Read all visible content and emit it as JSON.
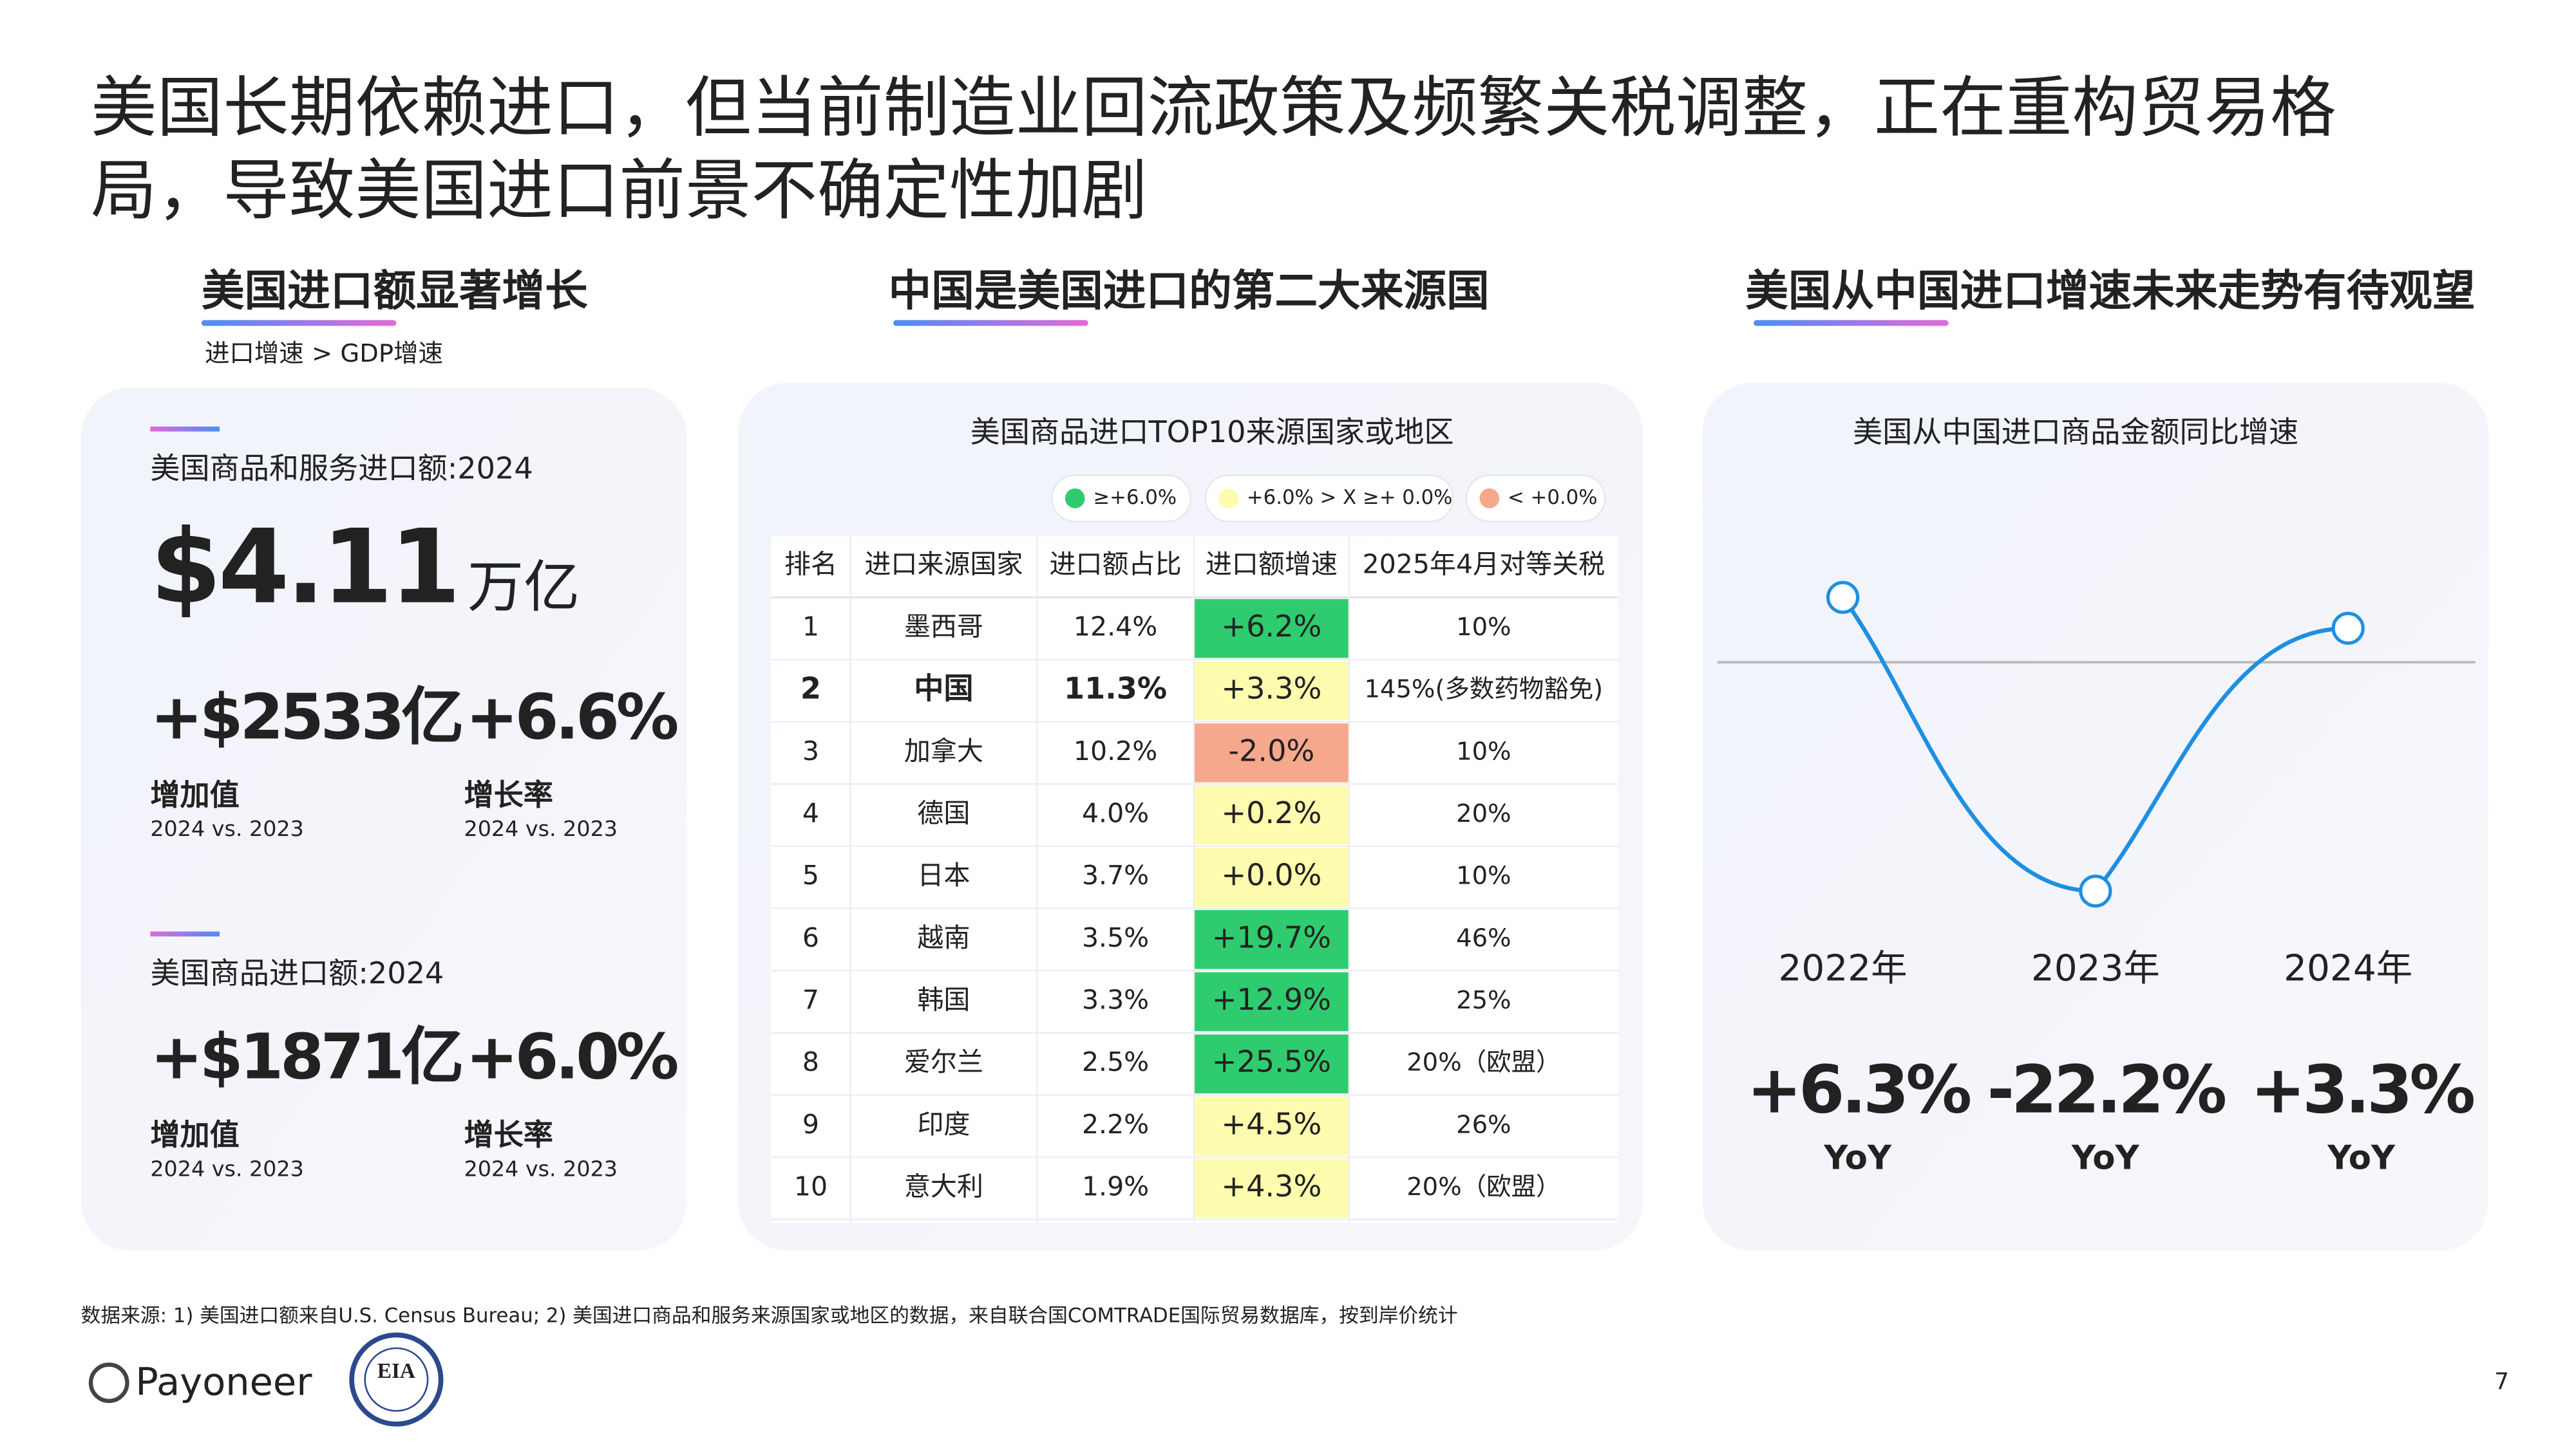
{
  "title_lines": [
    "美国长期依赖进口，但当前制造业回流政策及频繁关税调整，正在重构贸易格",
    "局，导致美国进口前景不确定性加剧"
  ],
  "sections": [
    {
      "heading": "美国进口额显著增长",
      "subheading": "进口增速 > GDP增速"
    },
    {
      "heading": "中国是美国进口的第二大来源国"
    },
    {
      "heading": "美国从中国进口增速未来走势有待观望"
    }
  ],
  "imports": {
    "blocks": [
      {
        "label": "美国商品和服务进口额:2024",
        "total": "$4.11",
        "total_unit": "万亿",
        "increase": "+$2533亿",
        "rate": "+6.6%",
        "increase_label": "增加值",
        "rate_label": "增长率",
        "period": "2024 vs. 2023"
      },
      {
        "label": "美国商品进口额:2024",
        "increase": "+$1871亿",
        "rate": "+6.0%",
        "increase_label": "增加值",
        "rate_label": "增长率",
        "period": "2024 vs. 2023"
      }
    ]
  },
  "table": {
    "title": "美国商品进口TOP10来源国家或地区",
    "legend": [
      {
        "label": "≥+6.0%",
        "min": 6,
        "color": "#2fcc6f",
        "text_color": "#0b3d1a"
      },
      {
        "label": "+6.0% > X ≥+ 0.0%",
        "min": 0,
        "color": "#fdfcae",
        "text_color": "#9a8a00"
      },
      {
        "label": "< +0.0%",
        "color": "#f6a88c",
        "text_color": "#e8411d"
      }
    ],
    "columns": [
      "排名",
      "进口来源国家",
      "进口额占比",
      "进口额增速",
      "2025年4月对等关税"
    ],
    "rows": [
      {
        "rank": "1",
        "country": "墨西哥",
        "share": "12.4%",
        "growth": 6.2,
        "growth_label": "+6.2%",
        "tariff": "10%"
      },
      {
        "rank": "2",
        "country": "中国",
        "share": "11.3%",
        "growth": 3.3,
        "growth_label": "+3.3%",
        "tariff": "145%(多数药物豁免)",
        "highlight": true
      },
      {
        "rank": "3",
        "country": "加拿大",
        "share": "10.2%",
        "growth": -2.0,
        "growth_label": "-2.0%",
        "tariff": "10%"
      },
      {
        "rank": "4",
        "country": "德国",
        "share": "4.0%",
        "growth": 0.2,
        "growth_label": "+0.2%",
        "tariff": "20%"
      },
      {
        "rank": "5",
        "country": "日本",
        "share": "3.7%",
        "growth": 0.0,
        "growth_label": "+0.0%",
        "tariff": "10%"
      },
      {
        "rank": "6",
        "country": "越南",
        "share": "3.5%",
        "growth": 19.7,
        "growth_label": "+19.7%",
        "tariff": "46%"
      },
      {
        "rank": "7",
        "country": "韩国",
        "share": "3.3%",
        "growth": 12.9,
        "growth_label": "+12.9%",
        "tariff": "25%"
      },
      {
        "rank": "8",
        "country": "爱尔兰",
        "share": "2.5%",
        "growth": 25.5,
        "growth_label": "+25.5%",
        "tariff": "20%（欧盟）"
      },
      {
        "rank": "9",
        "country": "印度",
        "share": "2.2%",
        "growth": 4.5,
        "growth_label": "+4.5%",
        "tariff": "26%"
      },
      {
        "rank": "10",
        "country": "意大利",
        "share": "1.9%",
        "growth": 4.3,
        "growth_label": "+4.3%",
        "tariff": "20%（欧盟）"
      }
    ]
  },
  "chart_data": {
    "type": "line",
    "title": "美国从中国进口商品金额同比增速",
    "categories": [
      "2022年",
      "2023年",
      "2024年"
    ],
    "values": [
      6.3,
      -22.2,
      3.3
    ],
    "value_labels": [
      "+6.3%",
      "-22.2%",
      "+3.3%"
    ],
    "value_unit": "YoY",
    "color": "#1e8fe1"
  },
  "footer": {
    "source": "数据来源: 1) 美国进口额来自U.S. Census Bureau; 2) 美国进口商品和服务来源国家或地区的数据，来自联合国COMTRADE国际贸易数据库，按到岸价统计",
    "brand": "Payoneer",
    "partner": "EIA",
    "page": "7"
  }
}
